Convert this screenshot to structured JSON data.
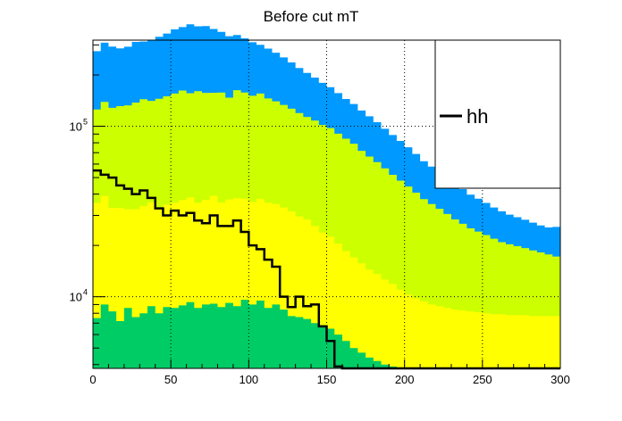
{
  "chart_data": {
    "type": "area",
    "title": "Before cut mT",
    "xlabel": "",
    "ylabel": "",
    "xlim": [
      0,
      300
    ],
    "ylim": [
      3800,
      320000
    ],
    "yscale": "log",
    "grid": true,
    "legend_placement": "top-right",
    "legend": [
      {
        "name": "hh",
        "color": "#000000"
      }
    ],
    "x_ticks": [
      {
        "value": 0,
        "label": "0"
      },
      {
        "value": 50,
        "label": "50"
      },
      {
        "value": 100,
        "label": "100"
      },
      {
        "value": 150,
        "label": "150"
      },
      {
        "value": 200,
        "label": "200"
      },
      {
        "value": 250,
        "label": "250"
      },
      {
        "value": 300,
        "label": "300"
      }
    ],
    "y_ticks": [
      {
        "value": 10000,
        "label_base": "10",
        "label_exp": "4"
      },
      {
        "value": 100000,
        "label_base": "10",
        "label_exp": "5"
      }
    ],
    "bin_width": 5,
    "bin_starts": [
      0,
      5,
      10,
      15,
      20,
      25,
      30,
      35,
      40,
      45,
      50,
      55,
      60,
      65,
      70,
      75,
      80,
      85,
      90,
      95,
      100,
      105,
      110,
      115,
      120,
      125,
      130,
      135,
      140,
      145,
      150,
      155,
      160,
      165,
      170,
      175,
      180,
      185,
      190,
      195,
      200,
      205,
      210,
      215,
      220,
      225,
      230,
      235,
      240,
      245,
      250,
      255,
      260,
      265,
      270,
      275,
      280,
      285,
      290,
      295
    ],
    "stack": [
      {
        "color": "#00cc66",
        "values": [
          7500,
          9000,
          8200,
          7200,
          8600,
          7600,
          8000,
          8800,
          8000,
          8700,
          8600,
          8900,
          9300,
          8600,
          9000,
          9100,
          8700,
          9200,
          8800,
          9600,
          9000,
          9500,
          8600,
          9000,
          8400,
          7700,
          7600,
          7400,
          7000,
          6800,
          6500,
          6000,
          5500,
          5000,
          4700,
          4400,
          4200,
          4000,
          3900,
          3800,
          3800,
          3800,
          3800,
          3800,
          3800,
          3800,
          3800,
          3800,
          3800,
          3800,
          3800,
          3800,
          3800,
          3800,
          3800,
          3800,
          3800,
          3800,
          3800,
          3800
        ]
      },
      {
        "color": "#ffff00",
        "values": [
          28000,
          30000,
          25000,
          26000,
          24000,
          25000,
          26000,
          27000,
          25000,
          26000,
          27000,
          28000,
          29000,
          27000,
          28000,
          30000,
          27000,
          28000,
          29000,
          28000,
          27000,
          28000,
          27000,
          26000,
          25000,
          24000,
          22000,
          21000,
          19000,
          17000,
          16000,
          14500,
          13000,
          12000,
          11000,
          10000,
          9400,
          8600,
          8000,
          7200,
          6500,
          6000,
          5600,
          5200,
          5000,
          4800,
          4600,
          4500,
          4400,
          4300,
          4200,
          4100,
          4100,
          4000,
          4000,
          4000,
          3900,
          3900,
          3900,
          3900
        ]
      },
      {
        "color": "#ccff00",
        "values": [
          90000,
          100000,
          95000,
          98000,
          100000,
          105000,
          110000,
          105000,
          112000,
          115000,
          120000,
          125000,
          118000,
          125000,
          120000,
          118000,
          122000,
          110000,
          125000,
          120000,
          115000,
          118000,
          110000,
          105000,
          100000,
          95000,
          90000,
          85000,
          82000,
          78000,
          75000,
          70000,
          66000,
          62000,
          56000,
          52000,
          48000,
          44000,
          40000,
          37000,
          34000,
          31000,
          28000,
          26000,
          24000,
          22000,
          20000,
          18500,
          17000,
          16000,
          15000,
          14000,
          13000,
          12500,
          12000,
          11500,
          11000,
          10500,
          10000,
          9500
        ]
      },
      {
        "color": "#0099ff",
        "values": [
          150000,
          170000,
          165000,
          155000,
          160000,
          175000,
          170000,
          180000,
          190000,
          200000,
          215000,
          220000,
          240000,
          225000,
          230000,
          215000,
          200000,
          190000,
          180000,
          170000,
          160000,
          145000,
          140000,
          130000,
          120000,
          110000,
          100000,
          92000,
          85000,
          78000,
          72000,
          66000,
          60000,
          56000,
          52000,
          48000,
          44000,
          40000,
          37000,
          34000,
          31000,
          28000,
          25000,
          23000,
          21000,
          19000,
          17500,
          16000,
          14500,
          13500,
          12500,
          11500,
          10800,
          10000,
          9500,
          9000,
          8500,
          8000,
          7800,
          8500
        ]
      }
    ],
    "series": [
      {
        "name": "hh",
        "color": "#000000",
        "values": [
          55000,
          52000,
          50000,
          45000,
          43000,
          40000,
          42000,
          38000,
          33000,
          30000,
          32000,
          30000,
          31000,
          28000,
          27000,
          30000,
          26000,
          26000,
          28000,
          24000,
          20000,
          19000,
          16500,
          15000,
          10000,
          8700,
          10000,
          8800,
          9000,
          6700,
          5500,
          3900,
          3800,
          3800,
          3800,
          3800,
          3800,
          3800,
          3800,
          3800,
          3800,
          3800,
          3800,
          3800,
          3800,
          3800,
          3800,
          3800,
          3800,
          3800,
          3800,
          3800,
          3800,
          3800,
          3800,
          3800,
          3800,
          3800,
          3800,
          3800
        ]
      }
    ]
  }
}
